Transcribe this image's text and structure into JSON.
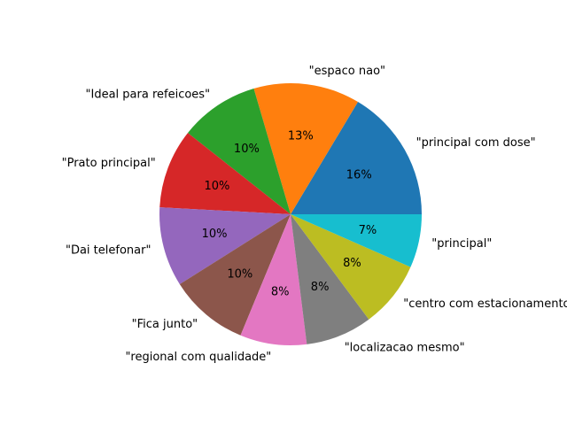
{
  "chart_data": {
    "type": "pie",
    "title": "",
    "categories": [
      "\"principal com dose\"",
      "\"espaco nao\"",
      "\"Ideal para refeicoes\"",
      "\"Prato principal\"",
      "\"Dai telefonar\"",
      "\"Fica junto\"",
      "\"regional com qualidade\"",
      "\"localizacao mesmo\"",
      "\"centro com estacionamento\"",
      "\"principal\""
    ],
    "values": [
      16.4,
      13.1,
      9.8,
      9.8,
      9.8,
      9.8,
      8.2,
      8.2,
      8.2,
      6.6
    ],
    "percent_labels": [
      "16%",
      "13%",
      "10%",
      "10%",
      "10%",
      "10%",
      "8%",
      "8%",
      "8%",
      "7%"
    ],
    "colors": [
      "#1f77b4",
      "#ff7f0e",
      "#2ca02c",
      "#d62728",
      "#9467bd",
      "#8c564b",
      "#e377c2",
      "#7f7f7f",
      "#bcbd22",
      "#17becf"
    ],
    "start_angle_deg": 0,
    "direction": "counterclockwise",
    "legend": "none"
  }
}
